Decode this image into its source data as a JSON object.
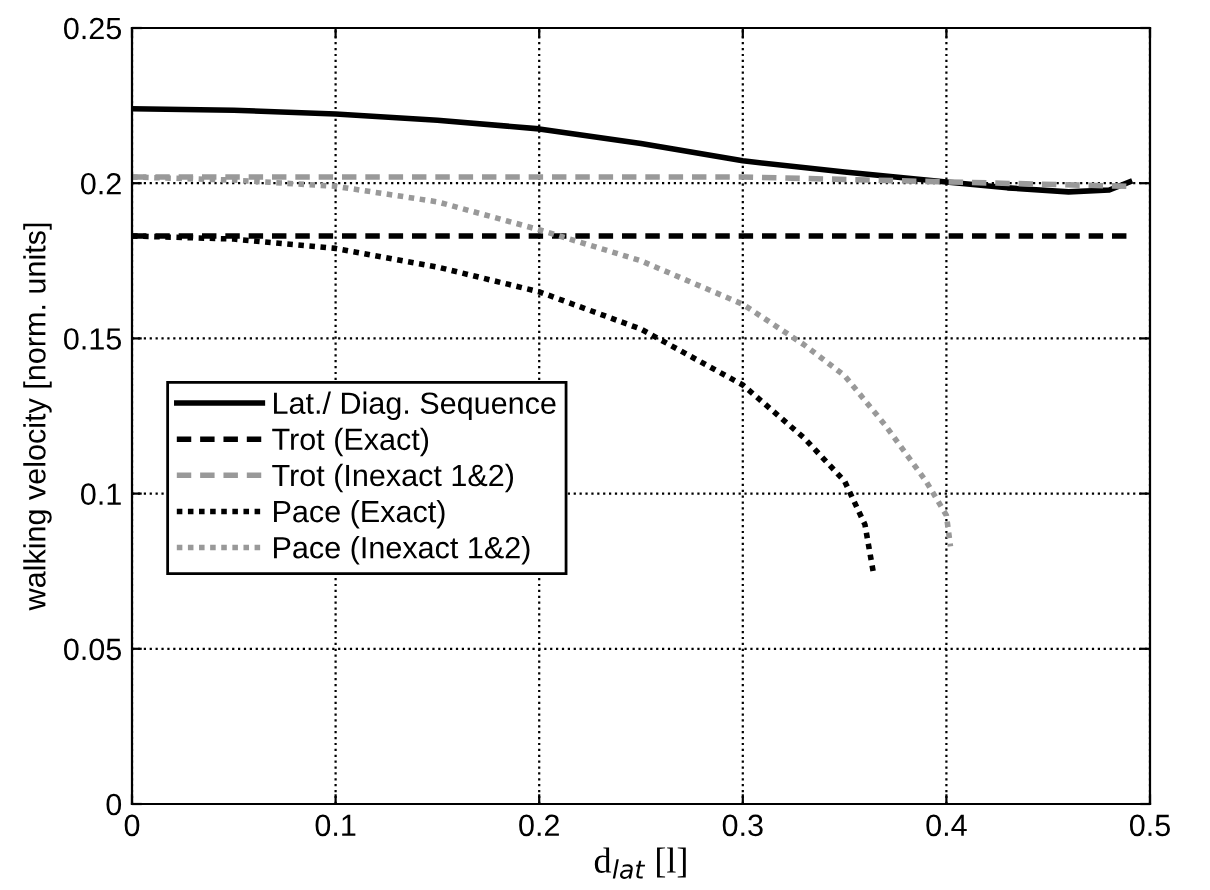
{
  "chart_data": {
    "type": "line",
    "xlabel": "d$_{lat}$ [l]",
    "ylabel": "walking velocity [norm. units]",
    "xlim": [
      0,
      0.5
    ],
    "ylim": [
      0,
      0.25
    ],
    "xticks": [
      0,
      0.1,
      0.2,
      0.3,
      0.4,
      0.5
    ],
    "yticks": [
      0,
      0.05,
      0.1,
      0.15,
      0.2,
      0.25
    ],
    "grid": true,
    "legend": "left",
    "marker": "none",
    "series": [
      {
        "name": "Lat./ Diag. Sequence",
        "color": "#000000",
        "line_style": "solid",
        "x": [
          0,
          0.05,
          0.1,
          0.15,
          0.2,
          0.25,
          0.3,
          0.35,
          0.4,
          0.43,
          0.46,
          0.48,
          0.49
        ],
        "values": [
          0.224,
          0.2235,
          0.2223,
          0.2203,
          0.2175,
          0.2128,
          0.2072,
          0.2036,
          0.2004,
          0.1985,
          0.1972,
          0.1978,
          0.2004
        ]
      },
      {
        "name": "Trot (Exact)",
        "color": "#000000",
        "line_style": "dashed",
        "x": [
          0,
          0.49
        ],
        "values": [
          0.183,
          0.183
        ]
      },
      {
        "name": "Trot (Inexact 1&2)",
        "color": "#999999",
        "line_style": "dashed",
        "x": [
          0,
          0.3,
          0.49
        ],
        "values": [
          0.202,
          0.202,
          0.199
        ]
      },
      {
        "name": "Pace (Exact)",
        "color": "#000000",
        "line_style": "dotted",
        "x": [
          0,
          0.05,
          0.1,
          0.15,
          0.2,
          0.25,
          0.3,
          0.33,
          0.35,
          0.36,
          0.364
        ],
        "values": [
          0.183,
          0.182,
          0.179,
          0.173,
          0.165,
          0.153,
          0.135,
          0.118,
          0.104,
          0.09,
          0.075
        ]
      },
      {
        "name": "Pace (Inexact 1&2)",
        "color": "#999999",
        "line_style": "dotted",
        "x": [
          0,
          0.05,
          0.1,
          0.15,
          0.2,
          0.25,
          0.3,
          0.33,
          0.35,
          0.37,
          0.39,
          0.4,
          0.402
        ],
        "values": [
          0.202,
          0.201,
          0.199,
          0.194,
          0.185,
          0.175,
          0.161,
          0.148,
          0.138,
          0.122,
          0.104,
          0.093,
          0.083
        ]
      }
    ]
  }
}
